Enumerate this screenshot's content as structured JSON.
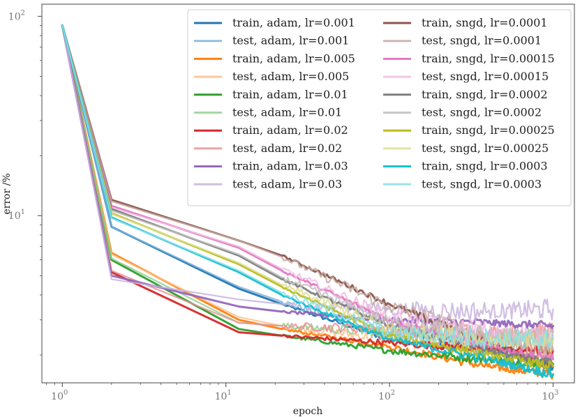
{
  "chart_data": {
    "type": "line",
    "title": "",
    "xlabel": "epoch",
    "ylabel": "error /%",
    "xscale": "log",
    "yscale": "log",
    "xlim": [
      0.75,
      1350
    ],
    "ylim": [
      1.45,
      115
    ],
    "x_ticks": [
      {
        "value": 1,
        "base": "10",
        "exp": "0"
      },
      {
        "value": 10,
        "base": "10",
        "exp": "1"
      },
      {
        "value": 100,
        "base": "10",
        "exp": "2"
      },
      {
        "value": 1000,
        "base": "10",
        "exp": "3"
      }
    ],
    "y_ticks": [
      {
        "value": 10,
        "base": "10",
        "exp": "1"
      },
      {
        "value": 100,
        "base": "10",
        "exp": "2"
      }
    ],
    "x": [
      1,
      2,
      12,
      22,
      100,
      400,
      1000
    ],
    "legend_position": "top-right",
    "series": [
      {
        "name": "train, adam, lr=0.001",
        "color": "#1f77b4",
        "values": [
          90,
          8.8,
          4.3,
          3.6,
          2.4,
          2.1,
          1.75
        ]
      },
      {
        "name": "test, adam, lr=0.001",
        "color": "#7fb3d9",
        "values": [
          90,
          8.8,
          4.4,
          3.7,
          2.5,
          2.2,
          2.0
        ]
      },
      {
        "name": "train, adam, lr=0.005",
        "color": "#ff7f0e",
        "values": [
          90,
          6.5,
          3.0,
          2.7,
          2.2,
          1.75,
          1.6
        ]
      },
      {
        "name": "test, adam, lr=0.005",
        "color": "#ffbf86",
        "values": [
          90,
          6.4,
          3.1,
          2.8,
          2.4,
          2.2,
          2.1
        ]
      },
      {
        "name": "train, adam, lr=0.01",
        "color": "#2ca02c",
        "values": [
          90,
          6.0,
          2.7,
          2.5,
          2.1,
          1.9,
          1.8
        ]
      },
      {
        "name": "test, adam, lr=0.01",
        "color": "#95cf95",
        "values": [
          90,
          6.1,
          2.9,
          2.8,
          2.6,
          2.5,
          2.4
        ]
      },
      {
        "name": "train, adam, lr=0.02",
        "color": "#d62728",
        "values": [
          90,
          5.2,
          2.6,
          2.5,
          2.3,
          2.15,
          2.1
        ]
      },
      {
        "name": "test, adam, lr=0.02",
        "color": "#ea9293",
        "values": [
          90,
          5.3,
          2.9,
          2.8,
          2.7,
          2.6,
          2.6
        ]
      },
      {
        "name": "train, adam, lr=0.03",
        "color": "#9467bd",
        "values": [
          90,
          5.0,
          3.5,
          3.3,
          3.0,
          2.9,
          2.8
        ]
      },
      {
        "name": "test, adam, lr=0.03",
        "color": "#c9b3de",
        "values": [
          90,
          4.8,
          3.8,
          3.6,
          3.4,
          3.3,
          3.4
        ]
      },
      {
        "name": "train, sngd, lr=0.0001",
        "color": "#8c564b",
        "values": [
          90,
          12.0,
          7.5,
          6.3,
          3.6,
          2.3,
          1.75
        ]
      },
      {
        "name": "test, sngd, lr=0.0001",
        "color": "#c5aaa5",
        "values": [
          90,
          11.8,
          7.5,
          6.2,
          3.5,
          2.5,
          2.1
        ]
      },
      {
        "name": "train, sngd, lr=0.00015",
        "color": "#e377c2",
        "values": [
          90,
          11.2,
          6.9,
          5.3,
          3.0,
          2.2,
          1.9
        ]
      },
      {
        "name": "test, sngd, lr=0.00015",
        "color": "#f1bbe0",
        "values": [
          90,
          11.0,
          7.0,
          5.4,
          3.1,
          2.6,
          2.5
        ]
      },
      {
        "name": "train, sngd, lr=0.0002",
        "color": "#7f7f7f",
        "values": [
          90,
          10.8,
          6.3,
          4.8,
          2.8,
          2.1,
          1.8
        ]
      },
      {
        "name": "test, sngd, lr=0.0002",
        "color": "#bfbfbf",
        "values": [
          90,
          10.6,
          6.4,
          4.9,
          2.9,
          2.5,
          2.4
        ]
      },
      {
        "name": "train, sngd, lr=0.00025",
        "color": "#bcbd22",
        "values": [
          90,
          10.3,
          5.7,
          4.4,
          2.5,
          2.0,
          1.75
        ]
      },
      {
        "name": "test, sngd, lr=0.00025",
        "color": "#dddf90",
        "values": [
          90,
          10.2,
          5.8,
          4.5,
          2.7,
          2.4,
          2.3
        ]
      },
      {
        "name": "train, sngd, lr=0.0003",
        "color": "#17becf",
        "values": [
          90,
          9.8,
          5.2,
          4.0,
          2.4,
          1.9,
          1.6
        ]
      },
      {
        "name": "test, sngd, lr=0.0003",
        "color": "#8bdfe7",
        "values": [
          90,
          9.7,
          5.3,
          4.1,
          2.6,
          2.4,
          2.4
        ]
      }
    ]
  }
}
